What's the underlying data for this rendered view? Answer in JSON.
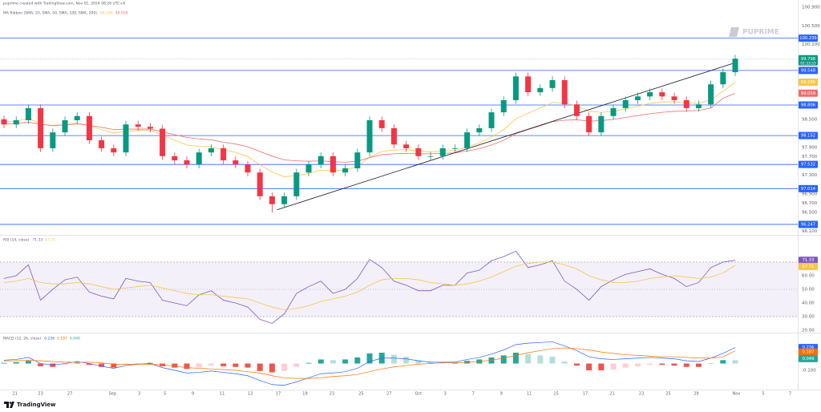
{
  "header": {
    "source": "puprime created with TradingView.com, Nov 01, 2024 08:26 UTC+8",
    "watermark": "PUPRIME",
    "footer": "TradingView"
  },
  "chart_data": [
    {
      "type": "candlestick",
      "title": "MA Ribbon (SMA, 20, SMA, 50, SMA, 100, SMA, 200)",
      "up_color": "#089981",
      "down_color": "#f23645",
      "open": [
        98.5,
        98.39,
        98.48,
        98.74,
        97.88,
        98.22,
        98.48,
        98.57,
        98.05,
        97.88,
        97.79,
        98.39,
        98.34,
        98.3,
        97.71,
        97.62,
        97.53,
        97.79,
        97.88,
        97.62,
        97.53,
        97.36,
        96.85,
        96.68,
        96.85,
        97.36,
        97.53,
        97.71,
        97.36,
        97.45,
        97.79,
        98.48,
        98.31,
        97.96,
        97.88,
        97.71,
        97.71,
        97.88,
        97.88,
        98.22,
        98.31,
        98.65,
        98.91,
        99.42,
        99.08,
        99.17,
        99.34,
        98.82,
        98.57,
        98.22,
        98.57,
        98.74,
        98.91,
        98.99,
        99.08,
        98.99,
        98.91,
        98.74,
        98.82,
        99.25,
        99.51
      ],
      "high": [
        98.58,
        98.56,
        98.82,
        98.82,
        98.3,
        98.56,
        98.65,
        98.65,
        98.13,
        97.96,
        98.47,
        98.47,
        98.42,
        98.38,
        97.79,
        97.7,
        97.87,
        97.96,
        97.96,
        97.7,
        97.61,
        97.44,
        96.93,
        96.93,
        97.44,
        97.61,
        97.79,
        97.79,
        97.53,
        97.87,
        98.56,
        98.56,
        98.39,
        98.04,
        97.96,
        97.79,
        97.96,
        97.96,
        98.3,
        98.39,
        98.73,
        98.99,
        99.5,
        99.5,
        99.25,
        99.42,
        99.42,
        98.9,
        98.65,
        98.65,
        98.82,
        98.99,
        99.07,
        99.16,
        99.16,
        99.07,
        98.99,
        98.9,
        99.33,
        99.59,
        99.88
      ],
      "low": [
        98.31,
        98.31,
        98.4,
        97.8,
        97.8,
        98.14,
        98.4,
        97.97,
        97.8,
        97.71,
        97.71,
        98.26,
        98.22,
        97.63,
        97.54,
        97.45,
        97.45,
        97.71,
        97.54,
        97.45,
        97.28,
        96.77,
        96.5,
        96.6,
        96.77,
        97.28,
        97.45,
        97.28,
        97.28,
        97.37,
        97.71,
        98.23,
        97.88,
        97.8,
        97.63,
        97.63,
        97.63,
        97.8,
        97.8,
        98.14,
        98.23,
        98.57,
        98.83,
        99.0,
        99.0,
        99.09,
        98.74,
        98.49,
        98.14,
        98.14,
        98.49,
        98.66,
        98.83,
        98.91,
        98.91,
        98.83,
        98.66,
        98.66,
        98.74,
        99.17,
        99.43
      ],
      "close": [
        98.39,
        98.48,
        98.74,
        97.88,
        98.22,
        98.48,
        98.57,
        98.05,
        97.88,
        97.79,
        98.39,
        98.34,
        98.3,
        97.71,
        97.62,
        97.53,
        97.79,
        97.88,
        97.62,
        97.53,
        97.36,
        96.85,
        96.68,
        96.85,
        97.36,
        97.53,
        97.71,
        97.36,
        97.45,
        97.79,
        98.48,
        98.31,
        97.96,
        97.88,
        97.71,
        97.71,
        97.88,
        97.88,
        98.22,
        98.31,
        98.65,
        98.91,
        99.42,
        99.08,
        99.17,
        99.34,
        98.82,
        98.57,
        98.22,
        98.57,
        98.74,
        98.91,
        98.99,
        99.08,
        98.99,
        98.91,
        98.74,
        98.82,
        99.25,
        99.51,
        99.798
      ],
      "countdown": "01:33:33",
      "series": [
        {
          "color": "#f7c548",
          "values": [
            98.45,
            98.46,
            98.52,
            98.4,
            98.36,
            98.38,
            98.42,
            98.36,
            98.28,
            98.2,
            98.24,
            98.26,
            98.27,
            98.16,
            98.05,
            97.95,
            97.92,
            97.91,
            97.85,
            97.79,
            97.7,
            97.53,
            97.37,
            97.27,
            97.29,
            97.34,
            97.41,
            97.4,
            97.41,
            97.49,
            97.69,
            97.81,
            97.84,
            97.85,
            97.82,
            97.8,
            97.82,
            97.83,
            97.91,
            97.99,
            98.12,
            98.28,
            98.51,
            98.63,
            98.74,
            98.86,
            98.85,
            98.79,
            98.67,
            98.65,
            98.67,
            98.72,
            98.78,
            98.84,
            98.87,
            98.88,
            98.85,
            98.84,
            98.92,
            99.1,
            99.296
          ]
        },
        {
          "color": "#f06c6c",
          "values": [
            98.4,
            98.41,
            98.44,
            98.39,
            98.37,
            98.38,
            98.4,
            98.37,
            98.33,
            98.28,
            98.29,
            98.29,
            98.29,
            98.23,
            98.17,
            98.11,
            98.08,
            98.06,
            98.01,
            97.97,
            97.91,
            97.81,
            97.71,
            97.63,
            97.61,
            97.6,
            97.61,
            97.59,
            97.58,
            97.6,
            97.68,
            97.74,
            97.76,
            97.77,
            97.76,
            97.76,
            97.77,
            97.78,
            97.82,
            97.87,
            97.95,
            98.05,
            98.19,
            98.28,
            98.36,
            98.45,
            98.48,
            98.49,
            98.46,
            98.47,
            98.5,
            98.54,
            98.58,
            98.62,
            98.65,
            98.67,
            98.68,
            98.69,
            98.74,
            98.95,
            99.059
          ]
        }
      ],
      "levels": {
        "color": "#2962ff",
        "values": [
          100.239,
          99.548,
          98.806,
          98.152,
          97.532,
          97.014,
          96.247
        ]
      },
      "trendline": {
        "color": "#131722",
        "x": [
          22.4,
          60.2
        ],
        "y": [
          96.56,
          99.73
        ]
      },
      "xlim": [
        -0.33,
        65.13
      ],
      "xticks": [
        {
          "value": 0.9,
          "label": "21"
        },
        {
          "value": 3.0,
          "label": "23"
        },
        {
          "value": 5.4,
          "label": "27"
        },
        {
          "value": 8.9,
          "label": "Sep"
        },
        {
          "value": 11.1,
          "label": "3"
        },
        {
          "value": 13.2,
          "label": "5"
        },
        {
          "value": 15.5,
          "label": "9"
        },
        {
          "value": 17.9,
          "label": "11"
        },
        {
          "value": 20.2,
          "label": "13"
        },
        {
          "value": 22.5,
          "label": "17"
        },
        {
          "value": 24.7,
          "label": "19"
        },
        {
          "value": 26.9,
          "label": "23"
        },
        {
          "value": 29.3,
          "label": "25"
        },
        {
          "value": 31.6,
          "label": "27"
        },
        {
          "value": 34.0,
          "label": "Oct"
        },
        {
          "value": 36.2,
          "label": "3"
        },
        {
          "value": 38.5,
          "label": "7"
        },
        {
          "value": 40.8,
          "label": "9"
        },
        {
          "value": 43.1,
          "label": "11"
        },
        {
          "value": 45.3,
          "label": "15"
        },
        {
          "value": 47.7,
          "label": "17"
        },
        {
          "value": 49.9,
          "label": "21"
        },
        {
          "value": 52.3,
          "label": "23"
        },
        {
          "value": 54.5,
          "label": "25"
        },
        {
          "value": 56.8,
          "label": "29"
        },
        {
          "value": 60.1,
          "label": "Nov"
        },
        {
          "value": 62.3,
          "label": "5"
        },
        {
          "value": 64.5,
          "label": "7"
        }
      ],
      "ylim": [
        96.04,
        100.92
      ],
      "yticks": [
        {
          "value": 96.1,
          "label": "96.100"
        },
        {
          "value": 96.5,
          "label": "96.500"
        },
        {
          "value": 96.7,
          "label": "96.700"
        },
        {
          "value": 96.9,
          "label": "96.900"
        },
        {
          "value": 97.3,
          "label": "97.300"
        },
        {
          "value": 97.7,
          "label": "97.700"
        },
        {
          "value": 97.9,
          "label": "97.900"
        },
        {
          "value": 98.5,
          "label": "98.500"
        },
        {
          "value": 100.1,
          "label": "100.100"
        },
        {
          "value": 100.5,
          "label": "100.500"
        },
        {
          "value": 100.9,
          "label": "100.900"
        }
      ]
    },
    {
      "type": "line",
      "title": "RSI (14, close)",
      "band": [
        30,
        70
      ],
      "midline": 50,
      "band_color": "#7e57c2",
      "series": [
        {
          "color": "#7e57c2",
          "values": [
            58,
            60,
            68,
            42,
            50,
            57,
            59,
            48,
            45,
            43,
            58,
            56,
            55,
            42,
            40,
            38,
            46,
            49,
            42,
            40,
            37,
            28,
            25,
            32,
            47,
            52,
            56,
            47,
            50,
            58,
            72,
            66,
            56,
            53,
            49,
            49,
            53,
            53,
            62,
            64,
            71,
            74,
            78,
            66,
            68,
            71,
            56,
            50,
            42,
            52,
            57,
            61,
            63,
            65,
            61,
            58,
            52,
            55,
            66,
            70,
            71.33
          ]
        },
        {
          "color": "#f7c548",
          "values": [
            55,
            56,
            58,
            55,
            54,
            54,
            55,
            54,
            52,
            50,
            51,
            52,
            53,
            51,
            49,
            47,
            46,
            46,
            45,
            44,
            43,
            40,
            37,
            35,
            36,
            38,
            41,
            43,
            45,
            48,
            53,
            57,
            58,
            58,
            57,
            55,
            54,
            53,
            54,
            56,
            59,
            63,
            67,
            69,
            70,
            70,
            68,
            65,
            60,
            57,
            55,
            55,
            56,
            58,
            59,
            60,
            59,
            58,
            59,
            62,
            67.71
          ]
        }
      ],
      "ylim": [
        19.4,
        88.8
      ],
      "yticks": [
        {
          "value": 20,
          "label": "20.00"
        },
        {
          "value": 30,
          "label": "30.00"
        },
        {
          "value": 40,
          "label": "40.00"
        },
        {
          "value": 50,
          "label": "50.00"
        },
        {
          "value": 60,
          "label": "60.00"
        }
      ]
    },
    {
      "type": "macd",
      "title": "MACD (12, 26, close)",
      "bar_colors": [
        "#26a69a",
        "#b2dfdb",
        "#ffcdd2",
        "#ef5350"
      ],
      "value_box_color": "#26a69a",
      "values": [
        0.01,
        0.02,
        0.04,
        -0.04,
        -0.05,
        -0.02,
        0.01,
        -0.02,
        -0.05,
        -0.06,
        -0.02,
        0.0,
        0.01,
        -0.04,
        -0.06,
        -0.08,
        -0.06,
        -0.03,
        -0.04,
        -0.05,
        -0.06,
        -0.11,
        -0.13,
        -0.11,
        -0.05,
        0.01,
        0.06,
        0.05,
        0.06,
        0.09,
        0.15,
        0.16,
        0.13,
        0.1,
        0.05,
        0.02,
        0.01,
        0.01,
        0.04,
        0.06,
        0.09,
        0.12,
        0.16,
        0.14,
        0.12,
        0.1,
        0.03,
        -0.03,
        -0.1,
        -0.1,
        -0.09,
        -0.06,
        -0.04,
        -0.02,
        -0.02,
        -0.03,
        -0.05,
        -0.05,
        0.0,
        0.05,
        0.049
      ],
      "series": [
        {
          "color": "#2962ff",
          "values": [
            0.05,
            0.06,
            0.09,
            0.0,
            -0.02,
            0.0,
            0.03,
            0.0,
            -0.04,
            -0.07,
            -0.03,
            -0.01,
            0.0,
            -0.06,
            -0.1,
            -0.14,
            -0.13,
            -0.11,
            -0.13,
            -0.15,
            -0.18,
            -0.25,
            -0.31,
            -0.32,
            -0.27,
            -0.21,
            -0.15,
            -0.14,
            -0.12,
            -0.07,
            0.03,
            0.08,
            0.08,
            0.07,
            0.04,
            0.02,
            0.02,
            0.02,
            0.06,
            0.09,
            0.14,
            0.2,
            0.28,
            0.3,
            0.31,
            0.32,
            0.26,
            0.19,
            0.1,
            0.07,
            0.06,
            0.07,
            0.08,
            0.09,
            0.08,
            0.07,
            0.04,
            0.03,
            0.08,
            0.15,
            0.236
          ]
        },
        {
          "color": "#ff6d00",
          "values": [
            0.04,
            0.04,
            0.05,
            0.04,
            0.03,
            0.02,
            0.02,
            0.02,
            0.01,
            -0.01,
            -0.01,
            -0.01,
            -0.01,
            -0.02,
            -0.04,
            -0.06,
            -0.07,
            -0.08,
            -0.09,
            -0.1,
            -0.12,
            -0.14,
            -0.18,
            -0.21,
            -0.22,
            -0.22,
            -0.21,
            -0.19,
            -0.18,
            -0.16,
            -0.12,
            -0.08,
            -0.05,
            -0.03,
            -0.01,
            0.0,
            0.01,
            0.01,
            0.02,
            0.03,
            0.05,
            0.08,
            0.12,
            0.16,
            0.19,
            0.22,
            0.23,
            0.22,
            0.2,
            0.17,
            0.15,
            0.13,
            0.12,
            0.11,
            0.1,
            0.1,
            0.09,
            0.08,
            0.08,
            0.1,
            0.187
          ]
        }
      ],
      "ylim": [
        -0.36,
        0.42
      ],
      "yticks": [
        {
          "value": -0.1,
          "label": "-0.100"
        }
      ]
    }
  ]
}
